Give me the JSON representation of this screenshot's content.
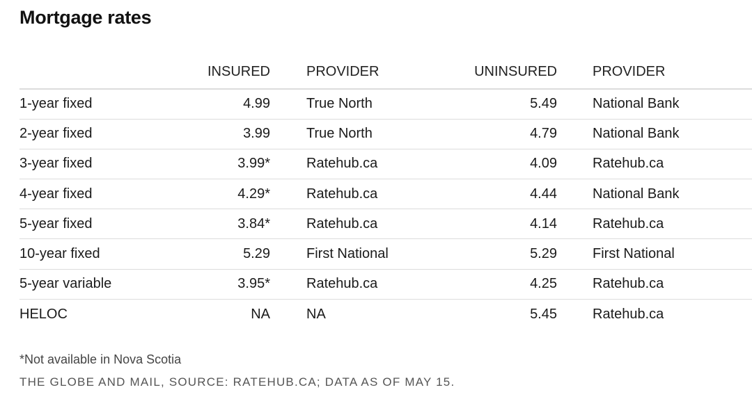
{
  "title": "Mortgage rates",
  "chart_data": {
    "type": "table",
    "columns": [
      "",
      "INSURED",
      "PROVIDER",
      "UNINSURED",
      "PROVIDER"
    ],
    "rows": [
      {
        "term": "1-year fixed",
        "insured": "4.99",
        "insured_provider": "True North",
        "uninsured": "5.49",
        "uninsured_provider": "National Bank"
      },
      {
        "term": "2-year fixed",
        "insured": "3.99",
        "insured_provider": "True North",
        "uninsured": "4.79",
        "uninsured_provider": "National Bank"
      },
      {
        "term": "3-year fixed",
        "insured": "3.99*",
        "insured_provider": "Ratehub.ca",
        "uninsured": "4.09",
        "uninsured_provider": "Ratehub.ca"
      },
      {
        "term": "4-year fixed",
        "insured": "4.29*",
        "insured_provider": "Ratehub.ca",
        "uninsured": "4.44",
        "uninsured_provider": "National Bank"
      },
      {
        "term": "5-year fixed",
        "insured": "3.84*",
        "insured_provider": "Ratehub.ca",
        "uninsured": "4.14",
        "uninsured_provider": "Ratehub.ca"
      },
      {
        "term": "10-year fixed",
        "insured": "5.29",
        "insured_provider": "First National",
        "uninsured": "5.29",
        "uninsured_provider": "First National"
      },
      {
        "term": "5-year variable",
        "insured": "3.95*",
        "insured_provider": "Ratehub.ca",
        "uninsured": "4.25",
        "uninsured_provider": "Ratehub.ca"
      },
      {
        "term": "HELOC",
        "insured": "NA",
        "insured_provider": "NA",
        "uninsured": "5.45",
        "uninsured_provider": "Ratehub.ca"
      }
    ]
  },
  "footnote": "*Not available in Nova Scotia",
  "source": "THE GLOBE AND MAIL, SOURCE: RATEHUB.CA; DATA AS OF MAY 15."
}
